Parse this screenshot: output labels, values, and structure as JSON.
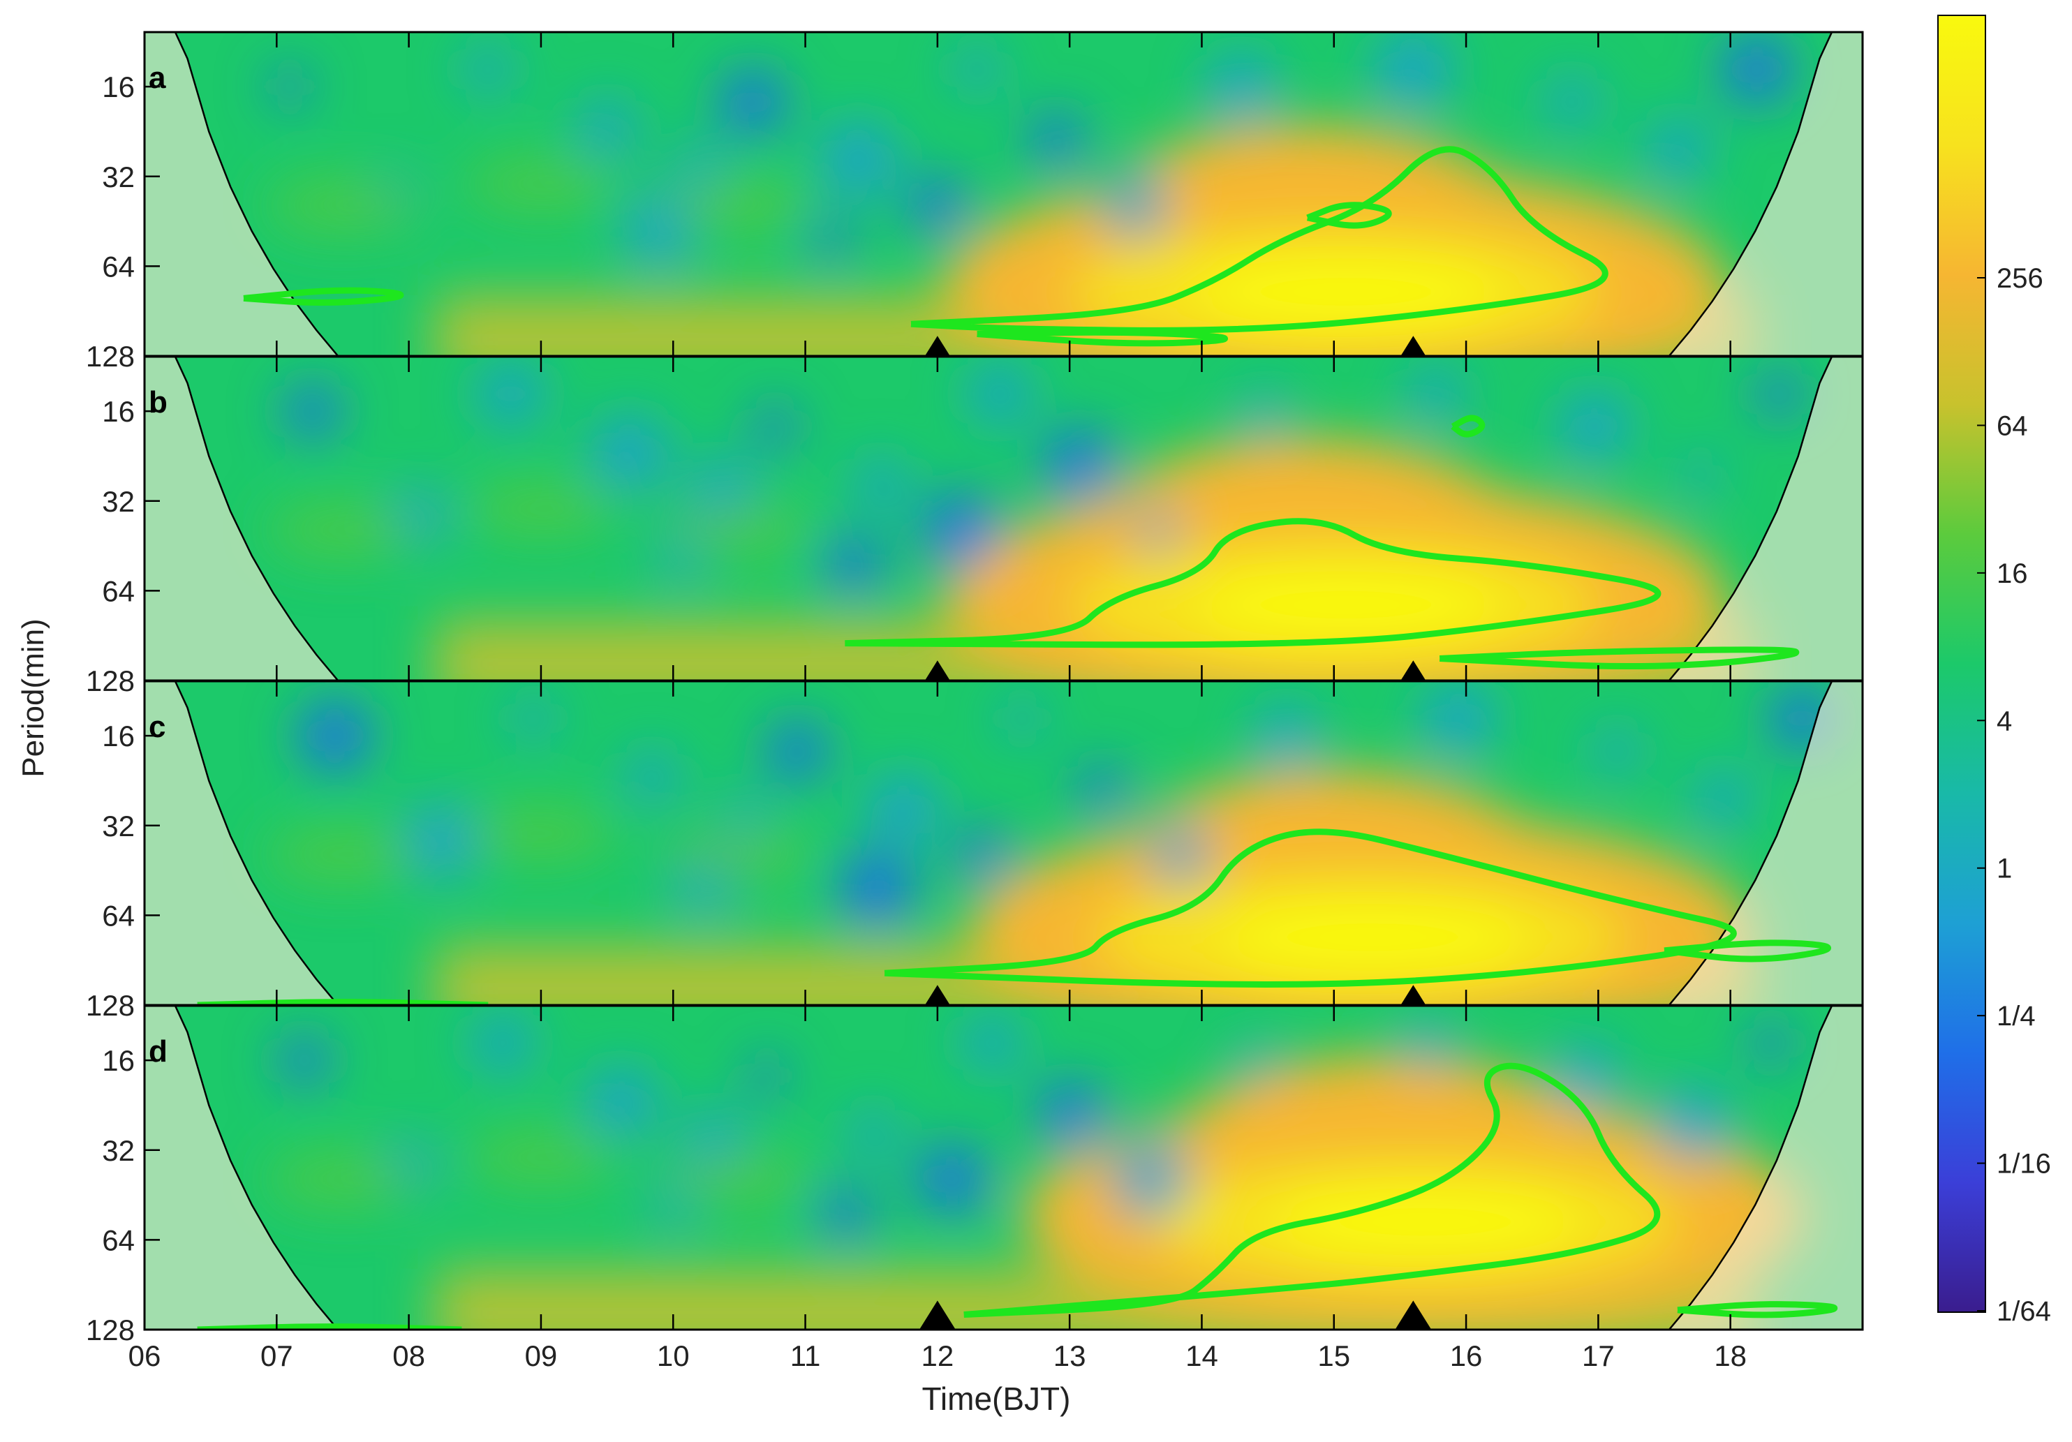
{
  "chart_data": {
    "type": "heatmap",
    "title": "",
    "xlabel": "Time(BJT)",
    "ylabel": "Period(min)",
    "x_ticks": [
      "06",
      "07",
      "08",
      "09",
      "10",
      "11",
      "12",
      "13",
      "14",
      "15",
      "16",
      "17",
      "18"
    ],
    "xlim": [
      6,
      19
    ],
    "y_ticks": [
      "16",
      "32",
      "64",
      "128"
    ],
    "ylim_period_min": [
      10.5,
      128
    ],
    "y_scale": "log2",
    "colorbar": {
      "ticks": [
        "1/64",
        "1/16",
        "1/4",
        "1",
        "4",
        "16",
        "64",
        "256"
      ],
      "colors": [
        "#3a1d8e",
        "#3b3fd8",
        "#1f6fe8",
        "#1ea0d4",
        "#19b9a8",
        "#1cc96a",
        "#5ccb3d",
        "#c8c22d",
        "#f6b632",
        "#f7e21e",
        "#f9f90e"
      ],
      "position": "right"
    },
    "markers_time": [
      12.0,
      15.6
    ],
    "significance_contour_color": "#1ee61e",
    "panels": [
      {
        "label": "a",
        "power_peak": {
          "time": 15.0,
          "period": 70,
          "level": "256+"
        },
        "contours": [
          {
            "name": "main",
            "points": [
              [
                11.8,
                100
              ],
              [
                13.5,
                92
              ],
              [
                14.1,
                72
              ],
              [
                14.6,
                52
              ],
              [
                15.3,
                40
              ],
              [
                15.8,
                24
              ],
              [
                16.2,
                30
              ],
              [
                16.5,
                48
              ],
              [
                17.3,
                72
              ],
              [
                16.0,
                90
              ],
              [
                14.4,
                106
              ],
              [
                12.5,
                104
              ],
              [
                11.8,
                100
              ]
            ]
          },
          {
            "name": "island",
            "points": [
              [
                14.8,
                44
              ],
              [
                15.1,
                39
              ],
              [
                15.5,
                42
              ],
              [
                15.2,
                48
              ],
              [
                14.8,
                44
              ]
            ]
          },
          {
            "name": "left-ellipse",
            "points": [
              [
                6.75,
                82
              ],
              [
                7.5,
                76
              ],
              [
                8.1,
                80
              ],
              [
                7.4,
                86
              ],
              [
                6.75,
                82
              ]
            ]
          },
          {
            "name": "bottom-ellipse",
            "points": [
              [
                12.3,
                108
              ],
              [
                13.5,
                106
              ],
              [
                14.4,
                112
              ],
              [
                13.5,
                118
              ],
              [
                12.3,
                108
              ]
            ]
          }
        ]
      },
      {
        "label": "b",
        "power_peak": {
          "time": 15.0,
          "period": 64,
          "level": "256+"
        },
        "contours": [
          {
            "name": "main",
            "points": [
              [
                11.3,
                96
              ],
              [
                13.0,
                92
              ],
              [
                13.3,
                68
              ],
              [
                14.0,
                56
              ],
              [
                14.2,
                40
              ],
              [
                14.9,
                36
              ],
              [
                15.4,
                48
              ],
              [
                16.5,
                52
              ],
              [
                17.8,
                66
              ],
              [
                16.3,
                84
              ],
              [
                14.9,
                98
              ],
              [
                11.3,
                96
              ]
            ]
          },
          {
            "name": "small-ring",
            "points": [
              [
                15.9,
                18
              ],
              [
                16.05,
                16.5
              ],
              [
                16.15,
                18
              ],
              [
                16.0,
                19.5
              ],
              [
                15.9,
                18
              ]
            ]
          },
          {
            "name": "right-lower",
            "points": [
              [
                15.8,
                108
              ],
              [
                17.0,
                102
              ],
              [
                18.9,
                100
              ],
              [
                17.5,
                118
              ],
              [
                15.8,
                108
              ]
            ]
          }
        ]
      },
      {
        "label": "c",
        "power_peak": {
          "time": 15.2,
          "period": 68,
          "level": "256+"
        },
        "contours": [
          {
            "name": "main",
            "points": [
              [
                11.6,
                100
              ],
              [
                13.1,
                92
              ],
              [
                13.3,
                72
              ],
              [
                14.0,
                60
              ],
              [
                14.3,
                38
              ],
              [
                14.9,
                32
              ],
              [
                15.8,
                40
              ],
              [
                17.2,
                58
              ],
              [
                18.4,
                76
              ],
              [
                16.4,
                102
              ],
              [
                14.5,
                112
              ],
              [
                11.6,
                100
              ]
            ]
          },
          {
            "name": "right-ellipse",
            "points": [
              [
                17.5,
                84
              ],
              [
                18.3,
                78
              ],
              [
                18.9,
                82
              ],
              [
                18.2,
                92
              ],
              [
                17.5,
                84
              ]
            ]
          },
          {
            "name": "bottom-edge",
            "points": [
              [
                6.4,
                128
              ],
              [
                7.5,
                124
              ],
              [
                8.6,
                128
              ]
            ]
          }
        ]
      },
      {
        "label": "d",
        "power_peak": {
          "time": 15.6,
          "period": 50,
          "level": "256+"
        },
        "contours": [
          {
            "name": "main",
            "points": [
              [
                12.2,
                114
              ],
              [
                13.8,
                106
              ],
              [
                14.1,
                84
              ],
              [
                14.4,
                60
              ],
              [
                15.2,
                52
              ],
              [
                15.9,
                40
              ],
              [
                16.3,
                26
              ],
              [
                16.1,
                18
              ],
              [
                16.4,
                16
              ],
              [
                16.9,
                22
              ],
              [
                17.1,
                36
              ],
              [
                17.6,
                56
              ],
              [
                16.8,
                72
              ],
              [
                15.6,
                84
              ],
              [
                14.8,
                92
              ],
              [
                12.2,
                114
              ]
            ]
          },
          {
            "name": "right-ellipse",
            "points": [
              [
                17.6,
                110
              ],
              [
                18.3,
                104
              ],
              [
                18.95,
                108
              ],
              [
                18.3,
                116
              ],
              [
                17.6,
                110
              ]
            ]
          },
          {
            "name": "bottom-edge",
            "points": [
              [
                6.4,
                128
              ],
              [
                7.4,
                124
              ],
              [
                8.4,
                128
              ]
            ]
          }
        ]
      }
    ]
  }
}
